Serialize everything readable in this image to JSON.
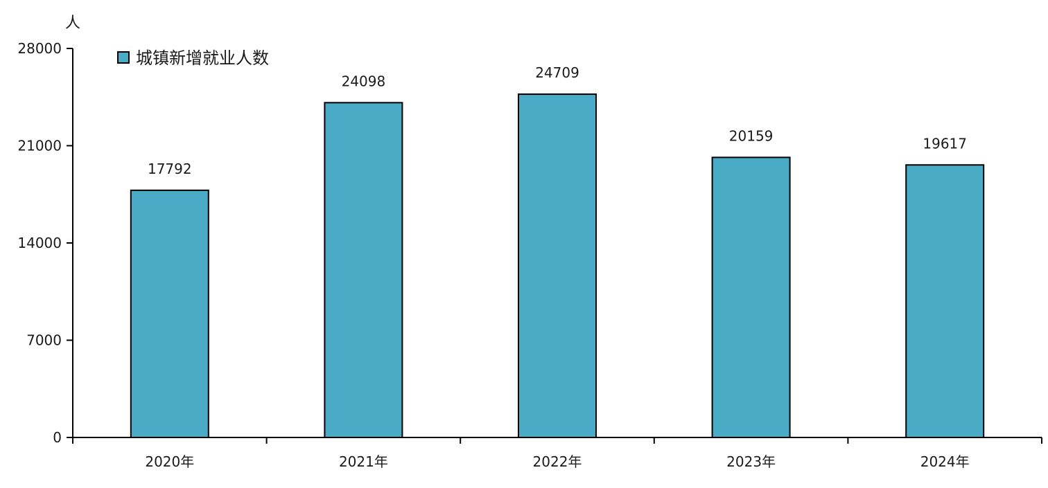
{
  "colors": {
    "bar_fill": "#4AABC6",
    "bar_stroke": "#000000",
    "axis": "#000000",
    "text": "#1a1a1a"
  },
  "chart_data": {
    "type": "bar",
    "y_unit": "人",
    "categories": [
      "2020年",
      "2021年",
      "2022年",
      "2023年",
      "2024年"
    ],
    "series": [
      {
        "name": "城镇新增就业人数",
        "values": [
          17792,
          24098,
          24709,
          20159,
          19617
        ]
      }
    ],
    "data_labels": [
      "17792",
      "24098",
      "24709",
      "20159",
      "19617"
    ],
    "ylim": [
      0,
      28000
    ],
    "yticks": [
      0,
      7000,
      14000,
      21000,
      28000
    ],
    "ytick_labels": [
      "0",
      "7000",
      "14000",
      "21000",
      "28000"
    ],
    "grid": false,
    "legend_position": "top-left"
  }
}
